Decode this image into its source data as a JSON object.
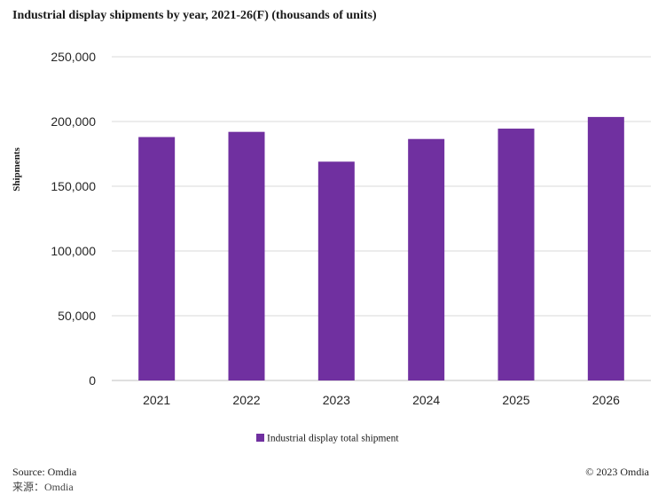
{
  "title": "Industrial display shipments by year, 2021-26(F) (thousands of units)",
  "footer": {
    "source": "Source: Omdia",
    "copyright": "© 2023 Omdia",
    "source_cut": "来源：Omdia"
  },
  "colors": {
    "bar": "#7030A0",
    "grid": "#d9d9d9",
    "axis": "#bfbfbf",
    "text": "#262626"
  },
  "chart_data": {
    "type": "bar",
    "categories": [
      "2021",
      "2022",
      "2023",
      "2024",
      "2025",
      "2026"
    ],
    "series": [
      {
        "name": "Industrial display total shipment",
        "values": [
          188000,
          192000,
          169000,
          186500,
          194500,
          203500
        ]
      }
    ],
    "title": "Industrial display shipments by year, 2021-26(F) (thousands of units)",
    "xlabel": "",
    "ylabel": "Shipments",
    "ylim": [
      0,
      250000
    ],
    "yticks": [
      0,
      50000,
      100000,
      150000,
      200000,
      250000
    ],
    "ytick_labels": [
      "0",
      "50,000",
      "100,000",
      "150,000",
      "200,000",
      "250,000"
    ],
    "grid": true,
    "legend": "bottom"
  }
}
